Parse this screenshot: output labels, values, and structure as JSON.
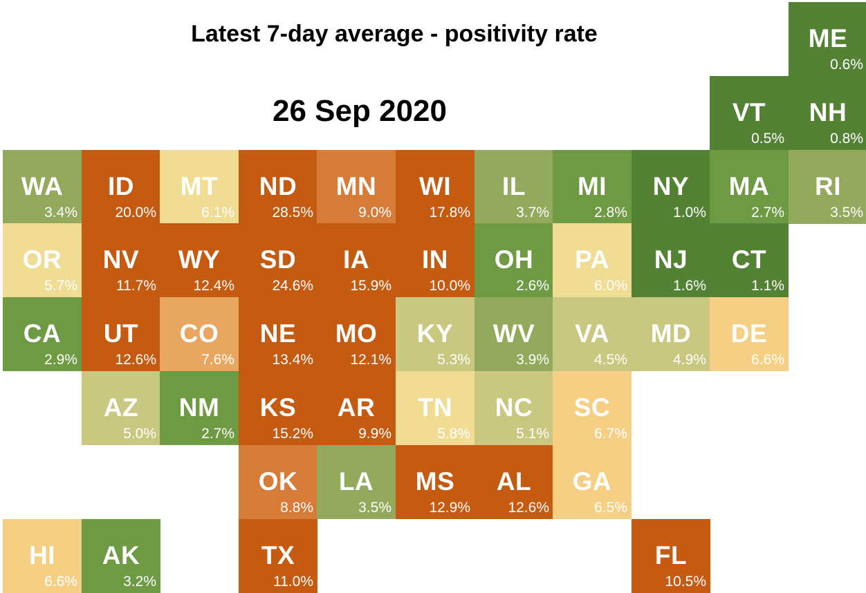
{
  "title": "Latest 7-day average - positivity rate",
  "date": "26 Sep 2020",
  "colors": {
    "dark_green": "#548235",
    "green": "#6e9a43",
    "olive": "#93a95c",
    "light_olive": "#c9c780",
    "pale_yellow": "#f0dc92",
    "light_orange": "#f5cf84",
    "orange": "#e9a660",
    "dark_orange": "#d67c38",
    "burnt_orange": "#c55a11"
  },
  "states": [
    {
      "abbr": "ME",
      "rate": "0.6%",
      "color": "dark_green"
    },
    {
      "abbr": "VT",
      "rate": "0.5%",
      "color": "dark_green"
    },
    {
      "abbr": "NH",
      "rate": "0.8%",
      "color": "dark_green"
    },
    {
      "abbr": "WA",
      "rate": "3.4%",
      "color": "olive"
    },
    {
      "abbr": "ID",
      "rate": "20.0%",
      "color": "burnt_orange"
    },
    {
      "abbr": "MT",
      "rate": "6.1%",
      "color": "pale_yellow"
    },
    {
      "abbr": "ND",
      "rate": "28.5%",
      "color": "burnt_orange"
    },
    {
      "abbr": "MN",
      "rate": "9.0%",
      "color": "dark_orange"
    },
    {
      "abbr": "WI",
      "rate": "17.8%",
      "color": "burnt_orange"
    },
    {
      "abbr": "IL",
      "rate": "3.7%",
      "color": "olive"
    },
    {
      "abbr": "MI",
      "rate": "2.8%",
      "color": "green"
    },
    {
      "abbr": "NY",
      "rate": "1.0%",
      "color": "dark_green"
    },
    {
      "abbr": "MA",
      "rate": "2.7%",
      "color": "green"
    },
    {
      "abbr": "RI",
      "rate": "3.5%",
      "color": "olive"
    },
    {
      "abbr": "OR",
      "rate": "5.7%",
      "color": "pale_yellow"
    },
    {
      "abbr": "NV",
      "rate": "11.7%",
      "color": "burnt_orange"
    },
    {
      "abbr": "WY",
      "rate": "12.4%",
      "color": "burnt_orange"
    },
    {
      "abbr": "SD",
      "rate": "24.6%",
      "color": "burnt_orange"
    },
    {
      "abbr": "IA",
      "rate": "15.9%",
      "color": "burnt_orange"
    },
    {
      "abbr": "IN",
      "rate": "10.0%",
      "color": "burnt_orange"
    },
    {
      "abbr": "OH",
      "rate": "2.6%",
      "color": "green"
    },
    {
      "abbr": "PA",
      "rate": "6.0%",
      "color": "pale_yellow"
    },
    {
      "abbr": "NJ",
      "rate": "1.6%",
      "color": "dark_green"
    },
    {
      "abbr": "CT",
      "rate": "1.1%",
      "color": "dark_green"
    },
    {
      "abbr": "CA",
      "rate": "2.9%",
      "color": "green"
    },
    {
      "abbr": "UT",
      "rate": "12.6%",
      "color": "burnt_orange"
    },
    {
      "abbr": "CO",
      "rate": "7.6%",
      "color": "orange"
    },
    {
      "abbr": "NE",
      "rate": "13.4%",
      "color": "burnt_orange"
    },
    {
      "abbr": "MO",
      "rate": "12.1%",
      "color": "burnt_orange"
    },
    {
      "abbr": "KY",
      "rate": "5.3%",
      "color": "light_olive"
    },
    {
      "abbr": "WV",
      "rate": "3.9%",
      "color": "olive"
    },
    {
      "abbr": "VA",
      "rate": "4.5%",
      "color": "light_olive"
    },
    {
      "abbr": "MD",
      "rate": "4.9%",
      "color": "light_olive"
    },
    {
      "abbr": "DE",
      "rate": "6.6%",
      "color": "light_orange"
    },
    {
      "abbr": "AZ",
      "rate": "5.0%",
      "color": "light_olive"
    },
    {
      "abbr": "NM",
      "rate": "2.7%",
      "color": "green"
    },
    {
      "abbr": "KS",
      "rate": "15.2%",
      "color": "burnt_orange"
    },
    {
      "abbr": "AR",
      "rate": "9.9%",
      "color": "burnt_orange"
    },
    {
      "abbr": "TN",
      "rate": "5.8%",
      "color": "pale_yellow"
    },
    {
      "abbr": "NC",
      "rate": "5.1%",
      "color": "light_olive"
    },
    {
      "abbr": "SC",
      "rate": "6.7%",
      "color": "light_orange"
    },
    {
      "abbr": "OK",
      "rate": "8.8%",
      "color": "dark_orange"
    },
    {
      "abbr": "LA",
      "rate": "3.5%",
      "color": "olive"
    },
    {
      "abbr": "MS",
      "rate": "12.9%",
      "color": "burnt_orange"
    },
    {
      "abbr": "AL",
      "rate": "12.6%",
      "color": "burnt_orange"
    },
    {
      "abbr": "GA",
      "rate": "6.5%",
      "color": "light_orange"
    },
    {
      "abbr": "HI",
      "rate": "6.6%",
      "color": "light_orange"
    },
    {
      "abbr": "AK",
      "rate": "3.2%",
      "color": "green"
    },
    {
      "abbr": "TX",
      "rate": "11.0%",
      "color": "burnt_orange"
    },
    {
      "abbr": "FL",
      "rate": "10.5%",
      "color": "burnt_orange"
    }
  ]
}
